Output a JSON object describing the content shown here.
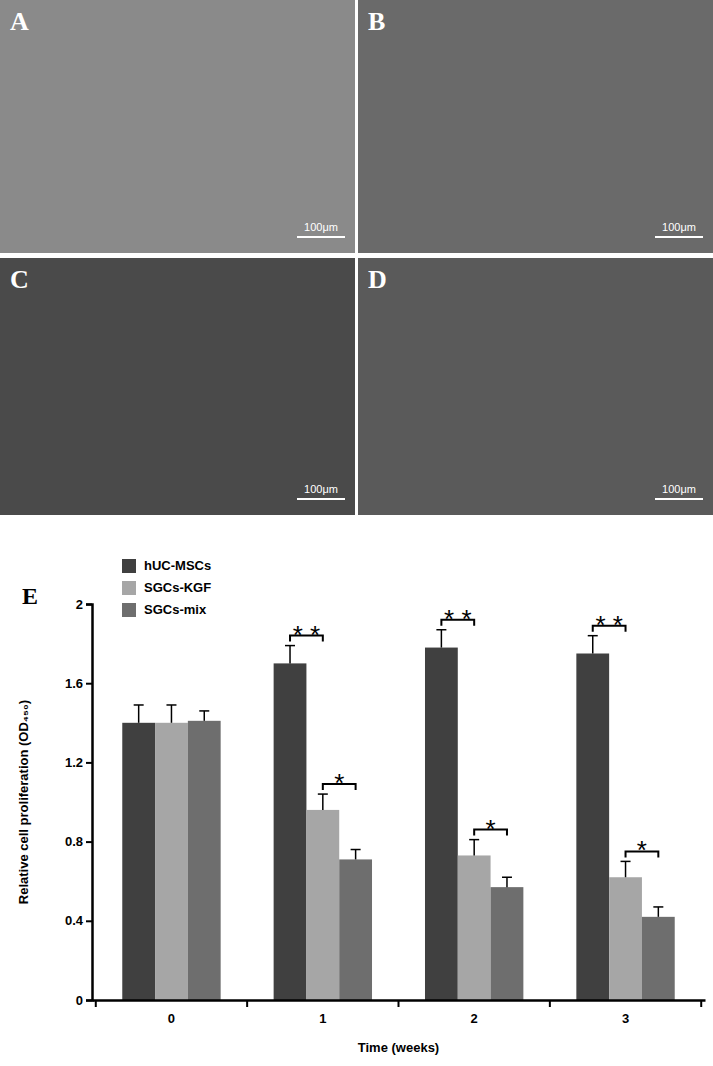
{
  "panels": [
    {
      "label": "A",
      "scale_bar": "100μm"
    },
    {
      "label": "B",
      "scale_bar": "100μm"
    },
    {
      "label": "C",
      "scale_bar": "100μm"
    },
    {
      "label": "D",
      "scale_bar": "100μm"
    }
  ],
  "chart_data": {
    "type": "bar",
    "title": "E",
    "x_label": "Time (weeks)",
    "y_label": "Relative cell proliferation (OD₄₅₀)",
    "categories": [
      "0",
      "1",
      "2",
      "3"
    ],
    "series": [
      {
        "name": "hUC-MSCs",
        "color": "#404040",
        "values": [
          1.4,
          1.7,
          1.78,
          1.75
        ],
        "errors": [
          0.09,
          0.09,
          0.09,
          0.09
        ]
      },
      {
        "name": "SGCs-KGF",
        "color": "#a6a6a6",
        "values": [
          1.4,
          0.96,
          0.73,
          0.62
        ],
        "errors": [
          0.09,
          0.08,
          0.08,
          0.08
        ]
      },
      {
        "name": "SGCs-mix",
        "color": "#6e6e6e",
        "values": [
          1.41,
          0.71,
          0.57,
          0.42
        ],
        "errors": [
          0.05,
          0.05,
          0.05,
          0.05
        ]
      }
    ],
    "ylim": [
      0,
      2
    ],
    "yticks": [
      0,
      0.4,
      0.8,
      1.2,
      1.6,
      2
    ],
    "legend": "upper left",
    "annotations": [
      {
        "text": "* *",
        "category": "1",
        "series": [
          "hUC-MSCs",
          "SGCs-KGF"
        ]
      },
      {
        "text": "*",
        "category": "1",
        "series": [
          "SGCs-KGF",
          "SGCs-mix"
        ]
      },
      {
        "text": "* *",
        "category": "2",
        "series": [
          "hUC-MSCs",
          "SGCs-KGF"
        ]
      },
      {
        "text": "*",
        "category": "2",
        "series": [
          "SGCs-KGF",
          "SGCs-mix"
        ]
      },
      {
        "text": "* *",
        "category": "3",
        "series": [
          "hUC-MSCs",
          "SGCs-KGF"
        ]
      },
      {
        "text": "*",
        "category": "3",
        "series": [
          "SGCs-KGF",
          "SGCs-mix"
        ]
      }
    ]
  }
}
